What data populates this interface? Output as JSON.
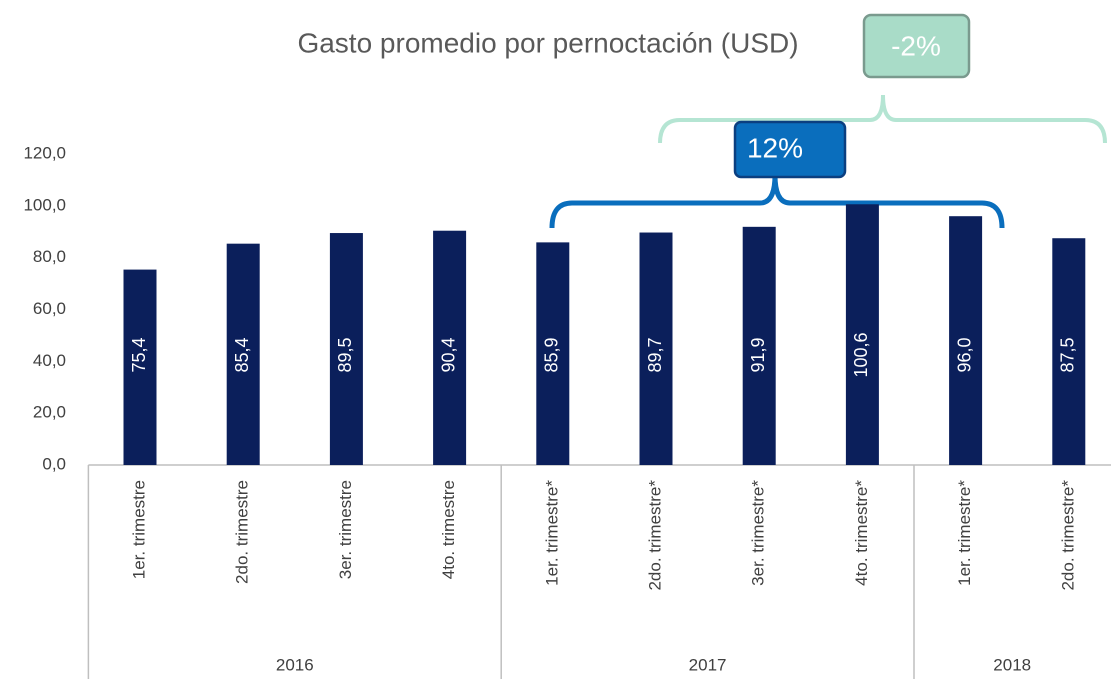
{
  "chart_data": {
    "type": "bar",
    "title": "Gasto promedio por pernoctación (USD)",
    "categories": [
      "1er. trimestre",
      "2do. trimestre",
      "3er. trimestre",
      "4to. trimestre",
      "1er. trimestre*",
      "2do. trimestre*",
      "3er. trimestre*",
      "4to. trimestre*",
      "1er. trimestre*",
      "2do. trimestre*"
    ],
    "years": [
      "2016",
      "2016",
      "2016",
      "2016",
      "2017",
      "2017",
      "2017",
      "2017",
      "2018",
      "2018"
    ],
    "values": [
      75.4,
      85.4,
      89.5,
      90.4,
      85.9,
      89.7,
      91.9,
      100.6,
      96.0,
      87.5
    ],
    "value_labels": [
      "75,4",
      "85,4",
      "89,5",
      "90,4",
      "85,9",
      "89,7",
      "91,9",
      "100,6",
      "96,0",
      "87,5"
    ],
    "color": "#0b1f5b",
    "ylim": [
      0,
      120
    ],
    "yticks": [
      {
        "value": 0,
        "label": "0,0"
      },
      {
        "value": 20,
        "label": "20,0"
      },
      {
        "value": 40,
        "label": "40,0"
      },
      {
        "value": 60,
        "label": "60,0"
      },
      {
        "value": 80,
        "label": "80,0"
      },
      {
        "value": 100,
        "label": "100,0"
      },
      {
        "value": 120,
        "label": "120,0"
      }
    ],
    "annotations": [
      {
        "text": "12%"
      },
      {
        "text": "-2%"
      }
    ]
  }
}
